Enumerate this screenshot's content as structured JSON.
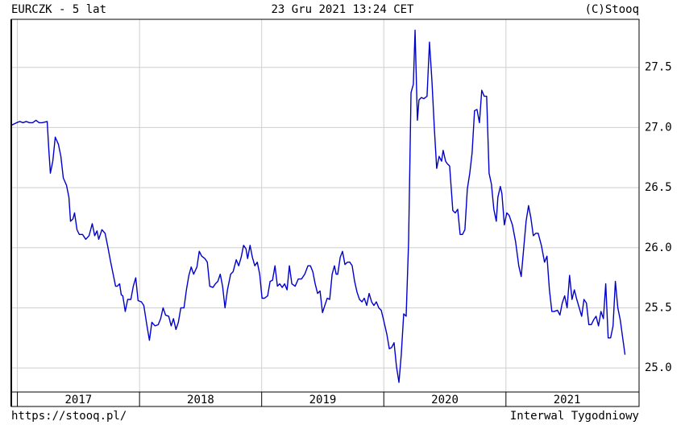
{
  "chart_data": {
    "type": "line",
    "title": "EURCZK - 5 lat",
    "date": "23 Gru 2021 13:24 CET",
    "source": "(C)Stooq",
    "url": "https://stooq.pl/",
    "interval": "Interwal Tygodniowy",
    "x": [
      2016.954,
      2016.993,
      2017.02,
      2017.046,
      2017.072,
      2017.099,
      2017.125,
      2017.152,
      2017.178,
      2017.204,
      2017.244,
      2017.257,
      2017.27,
      2017.29,
      2017.31,
      2017.336,
      2017.356,
      2017.376,
      2017.402,
      2017.422,
      2017.435,
      2017.455,
      2017.468,
      2017.488,
      2017.507,
      2017.534,
      2017.56,
      2017.587,
      2017.613,
      2017.633,
      2017.652,
      2017.666,
      2017.692,
      2017.718,
      2017.738,
      2017.764,
      2017.784,
      2017.804,
      2017.817,
      2017.837,
      2017.85,
      2017.863,
      2017.883,
      2017.903,
      2017.929,
      2017.949,
      2017.969,
      2017.988,
      2018.015,
      2018.035,
      2018.061,
      2018.081,
      2018.101,
      2018.127,
      2018.153,
      2018.173,
      2018.193,
      2018.213,
      2018.239,
      2018.259,
      2018.278,
      2018.298,
      2018.318,
      2018.338,
      2018.364,
      2018.384,
      2018.404,
      2018.423,
      2018.443,
      2018.47,
      2018.489,
      2018.509,
      2018.535,
      2018.555,
      2018.575,
      2018.601,
      2018.621,
      2018.641,
      2018.661,
      2018.68,
      2018.7,
      2018.72,
      2018.746,
      2018.766,
      2018.792,
      2018.812,
      2018.832,
      2018.852,
      2018.872,
      2018.885,
      2018.905,
      2018.924,
      2018.944,
      2018.964,
      2018.984,
      2019.003,
      2019.023,
      2019.049,
      2019.069,
      2019.089,
      2019.109,
      2019.129,
      2019.148,
      2019.168,
      2019.188,
      2019.208,
      2019.227,
      2019.247,
      2019.274,
      2019.3,
      2019.326,
      2019.353,
      2019.379,
      2019.399,
      2019.419,
      2019.438,
      2019.458,
      2019.478,
      2019.498,
      2019.517,
      2019.537,
      2019.557,
      2019.577,
      2019.596,
      2019.61,
      2019.623,
      2019.643,
      2019.662,
      2019.682,
      2019.702,
      2019.722,
      2019.741,
      2019.761,
      2019.781,
      2019.801,
      2019.821,
      2019.84,
      2019.86,
      2019.88,
      2019.9,
      2019.919,
      2019.939,
      2019.959,
      2019.979,
      2019.998,
      2020.025,
      2020.045,
      2020.064,
      2020.084,
      2020.104,
      2020.124,
      2020.143,
      2020.163,
      2020.183,
      2020.203,
      2020.223,
      2020.242,
      2020.256,
      2020.275,
      2020.288,
      2020.308,
      2020.328,
      2020.354,
      2020.374,
      2020.394,
      2020.414,
      2020.433,
      2020.453,
      2020.473,
      2020.486,
      2020.506,
      2020.519,
      2020.539,
      2020.565,
      2020.585,
      2020.605,
      2020.625,
      2020.644,
      2020.664,
      2020.684,
      2020.704,
      2020.723,
      2020.743,
      2020.763,
      2020.783,
      2020.802,
      2020.822,
      2020.842,
      2020.862,
      2020.881,
      2020.901,
      2020.921,
      2020.934,
      2020.954,
      2020.967,
      2020.987,
      2021.007,
      2021.026,
      2021.053,
      2021.079,
      2021.105,
      2021.125,
      2021.145,
      2021.165,
      2021.185,
      2021.204,
      2021.224,
      2021.244,
      2021.264,
      2021.29,
      2021.316,
      2021.336,
      2021.356,
      2021.376,
      2021.395,
      2021.422,
      2021.442,
      2021.461,
      2021.481,
      2021.501,
      2021.521,
      2021.541,
      2021.56,
      2021.58,
      2021.6,
      2021.62,
      2021.639,
      2021.659,
      2021.679,
      2021.699,
      2021.718,
      2021.738,
      2021.758,
      2021.778,
      2021.798,
      2021.817,
      2021.837,
      2021.857,
      2021.877,
      2021.896,
      2021.916,
      2021.936,
      2021.956,
      2021.975
    ],
    "series": [
      {
        "name": "EURCZK",
        "color": "#0000cc",
        "values": [
          27.02,
          27.04,
          27.05,
          27.04,
          27.05,
          27.04,
          27.04,
          27.06,
          27.04,
          27.04,
          27.05,
          26.82,
          26.62,
          26.72,
          26.92,
          26.86,
          26.76,
          26.58,
          26.52,
          26.42,
          26.22,
          26.24,
          26.29,
          26.15,
          26.11,
          26.11,
          26.07,
          26.1,
          26.2,
          26.1,
          26.14,
          26.07,
          26.15,
          26.12,
          26.02,
          25.88,
          25.78,
          25.68,
          25.68,
          25.7,
          25.61,
          25.6,
          25.47,
          25.57,
          25.57,
          25.68,
          25.75,
          25.56,
          25.55,
          25.52,
          25.35,
          25.23,
          25.38,
          25.35,
          25.36,
          25.41,
          25.5,
          25.44,
          25.43,
          25.35,
          25.41,
          25.32,
          25.38,
          25.5,
          25.5,
          25.65,
          25.77,
          25.84,
          25.78,
          25.84,
          25.97,
          25.93,
          25.91,
          25.88,
          25.68,
          25.67,
          25.7,
          25.72,
          25.78,
          25.68,
          25.5,
          25.65,
          25.78,
          25.8,
          25.9,
          25.85,
          25.92,
          26.02,
          25.99,
          25.91,
          26.02,
          25.92,
          25.85,
          25.88,
          25.78,
          25.58,
          25.58,
          25.6,
          25.72,
          25.73,
          25.85,
          25.68,
          25.7,
          25.67,
          25.7,
          25.65,
          25.85,
          25.7,
          25.68,
          25.74,
          25.74,
          25.78,
          25.85,
          25.85,
          25.8,
          25.7,
          25.62,
          25.64,
          25.46,
          25.52,
          25.58,
          25.57,
          25.78,
          25.85,
          25.78,
          25.78,
          25.92,
          25.97,
          25.86,
          25.88,
          25.88,
          25.85,
          25.72,
          25.63,
          25.57,
          25.55,
          25.58,
          25.52,
          25.62,
          25.55,
          25.52,
          25.55,
          25.5,
          25.48,
          25.4,
          25.28,
          25.16,
          25.17,
          25.21,
          25.01,
          24.88,
          25.11,
          25.45,
          25.43,
          26.05,
          27.29,
          27.36,
          27.81,
          27.06,
          27.23,
          27.25,
          27.24,
          27.26,
          27.71,
          27.39,
          26.99,
          26.66,
          26.76,
          26.72,
          26.81,
          26.72,
          26.7,
          26.68,
          26.31,
          26.29,
          26.32,
          26.11,
          26.11,
          26.15,
          26.49,
          26.62,
          26.79,
          27.14,
          27.15,
          27.04,
          27.31,
          27.26,
          27.26,
          26.62,
          26.53,
          26.32,
          26.22,
          26.42,
          26.51,
          26.45,
          26.19,
          26.29,
          26.27,
          26.19,
          26.05,
          25.85,
          25.76,
          25.99,
          26.22,
          26.35,
          26.25,
          26.1,
          26.12,
          26.12,
          26.02,
          25.88,
          25.93,
          25.65,
          25.47,
          25.47,
          25.48,
          25.44,
          25.54,
          25.6,
          25.5,
          25.77,
          25.57,
          25.65,
          25.57,
          25.5,
          25.43,
          25.57,
          25.54,
          25.36,
          25.36,
          25.4,
          25.43,
          25.35,
          25.47,
          25.41,
          25.7,
          25.25,
          25.25,
          25.35,
          25.72,
          25.5,
          25.4,
          25.25,
          25.11
        ]
      }
    ],
    "xlim": [
      2016.95,
      2022.09
    ],
    "xticks": [
      2017,
      2018,
      2019,
      2020,
      2021
    ],
    "ylim": [
      24.8,
      27.9
    ],
    "yticks": [
      {
        "value": 25.0,
        "label": "25.0"
      },
      25.5,
      {
        "value": 26.0,
        "label": "26.0"
      },
      26.5,
      {
        "value": 27.0,
        "label": "27.0"
      },
      27.5
    ],
    "grid": true
  }
}
